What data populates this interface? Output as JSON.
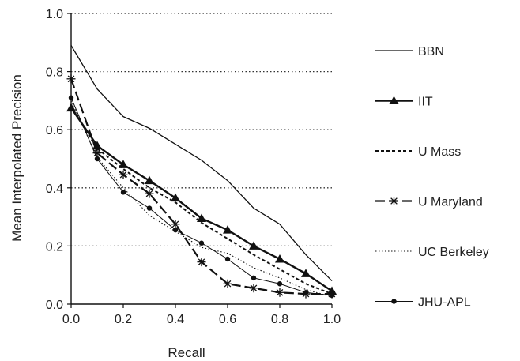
{
  "chart_data": {
    "type": "line",
    "title": "",
    "xlabel": "Recall",
    "ylabel": "Mean Interpolated Precision",
    "xlim": [
      0,
      1
    ],
    "ylim": [
      0,
      1
    ],
    "grid": "horizontal-dotted",
    "legend_position": "right",
    "x": [
      0.0,
      0.1,
      0.2,
      0.3,
      0.4,
      0.5,
      0.6,
      0.7,
      0.8,
      0.9,
      1.0
    ],
    "x_tick_labels": [
      "0.0",
      "0.2",
      "0.4",
      "0.6",
      "0.8",
      "1.0"
    ],
    "y_tick_labels": [
      "0.0",
      "0.2",
      "0.4",
      "0.6",
      "0.8",
      "1.0"
    ],
    "series": [
      {
        "name": "BBN",
        "style": "solid",
        "marker": "none",
        "values": [
          0.89,
          0.74,
          0.645,
          0.605,
          0.55,
          0.495,
          0.425,
          0.33,
          0.275,
          0.17,
          0.08
        ]
      },
      {
        "name": "IIT",
        "style": "solid-thick",
        "marker": "triangle",
        "values": [
          0.675,
          0.545,
          0.48,
          0.425,
          0.365,
          0.295,
          0.255,
          0.2,
          0.155,
          0.105,
          0.045
        ]
      },
      {
        "name": "U Mass",
        "style": "dashed-short",
        "marker": "none",
        "values": [
          0.68,
          0.535,
          0.465,
          0.4,
          0.35,
          0.28,
          0.225,
          0.17,
          0.12,
          0.07,
          0.035
        ]
      },
      {
        "name": "U Maryland",
        "style": "dashed-long",
        "marker": "asterisk",
        "values": [
          0.775,
          0.52,
          0.445,
          0.38,
          0.275,
          0.145,
          0.07,
          0.055,
          0.04,
          0.035,
          0.035
        ]
      },
      {
        "name": "UC Berkeley",
        "style": "dotted",
        "marker": "none",
        "values": [
          0.7,
          0.505,
          0.4,
          0.305,
          0.25,
          0.195,
          0.175,
          0.125,
          0.09,
          0.05,
          0.025
        ]
      },
      {
        "name": "JHU-APL",
        "style": "solid-thin",
        "marker": "dot",
        "values": [
          0.71,
          0.5,
          0.385,
          0.33,
          0.255,
          0.21,
          0.155,
          0.09,
          0.07,
          0.04,
          0.03
        ]
      }
    ]
  }
}
